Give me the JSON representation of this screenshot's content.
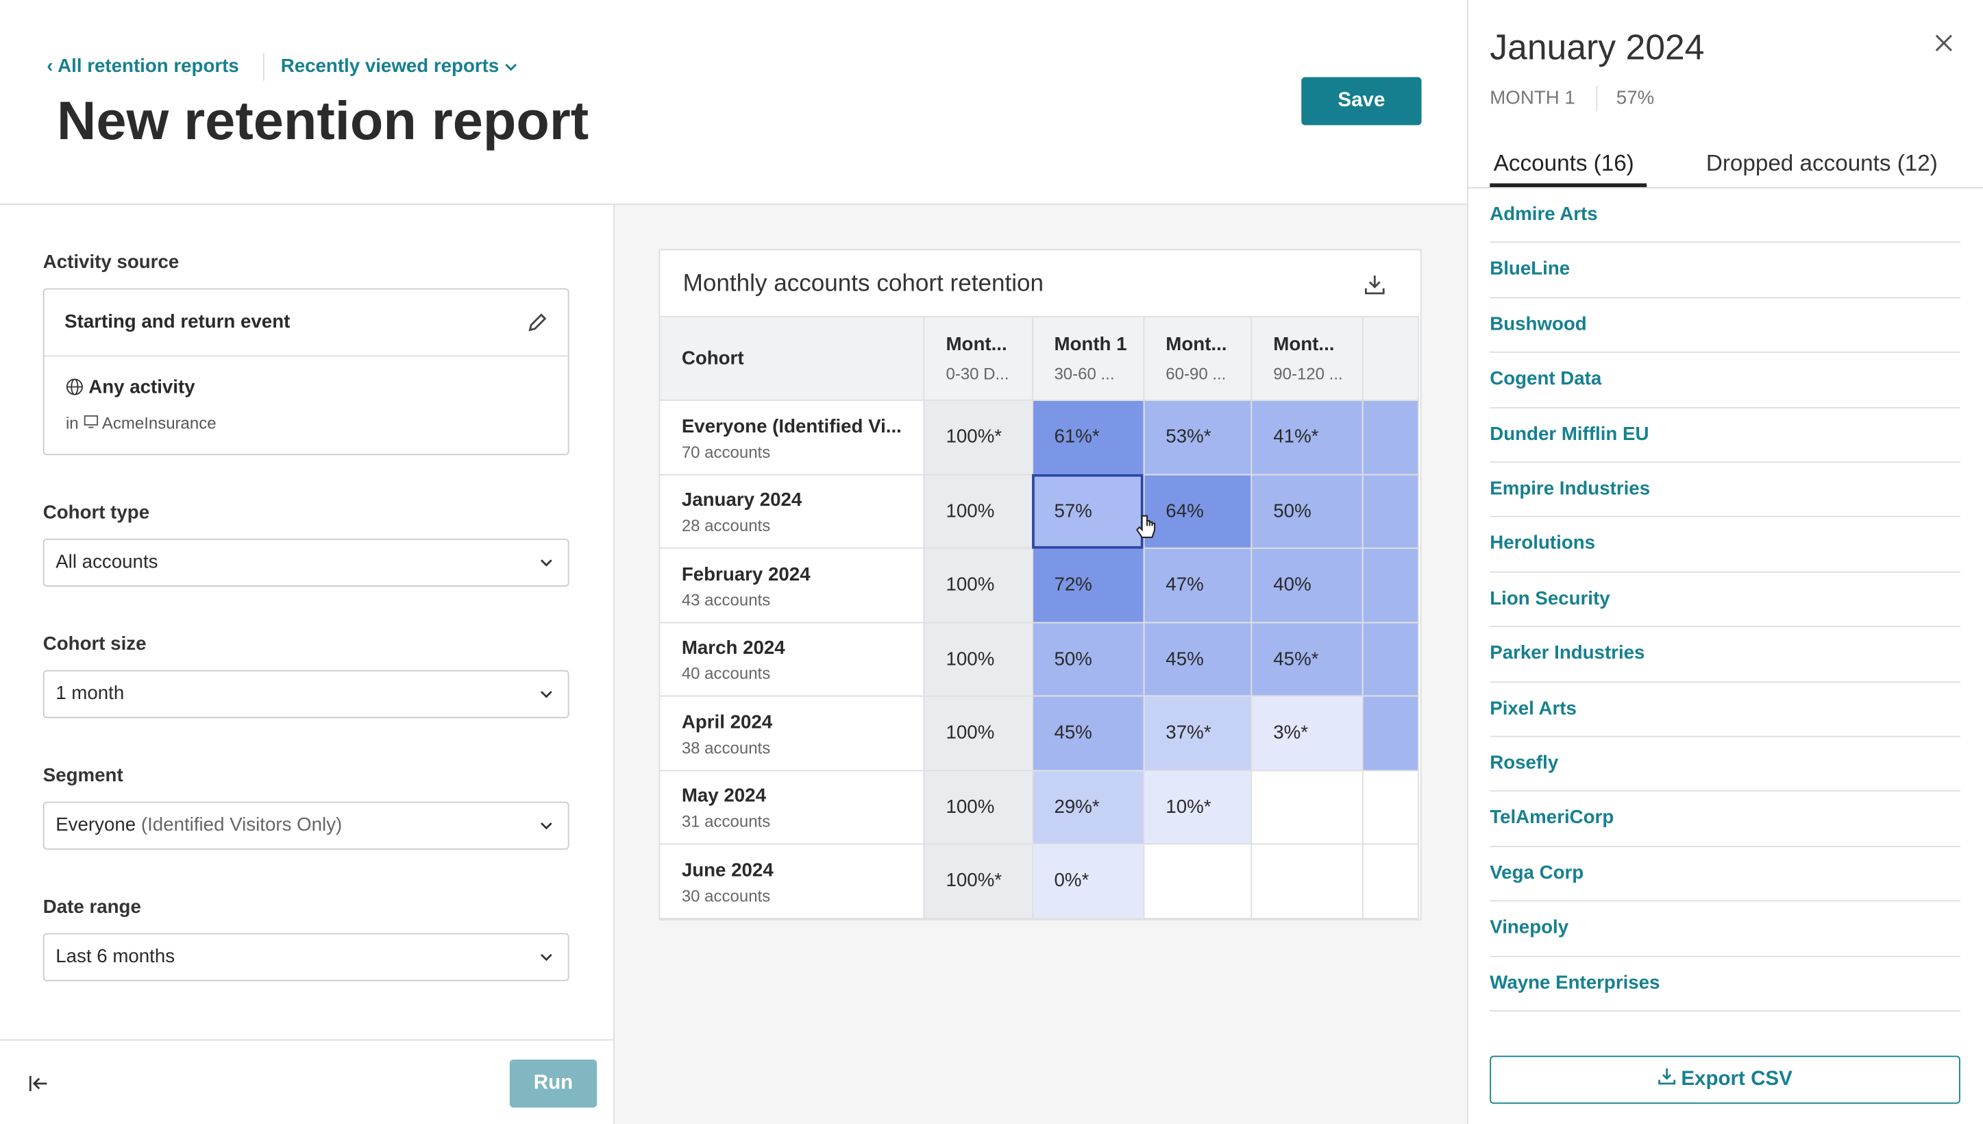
{
  "header": {
    "breadcrumb": "All retention reports",
    "recent": "Recently viewed reports",
    "title": "New retention report",
    "save": "Save"
  },
  "sidebar": {
    "activity_label": "Activity source",
    "event": "Starting and return event",
    "activity": "Any activity",
    "in": "in",
    "app": "AcmeInsurance",
    "fields": [
      {
        "label": "Cohort type",
        "value": "All accounts"
      },
      {
        "label": "Cohort size",
        "value": "1 month"
      },
      {
        "label": "Segment",
        "value": "Everyone",
        "note": "(Identified Visitors Only)"
      },
      {
        "label": "Date range",
        "value": "Last 6 months"
      }
    ],
    "run": "Run"
  },
  "table": {
    "title": "Monthly accounts cohort retention",
    "columns": [
      {
        "name": "Cohort"
      },
      {
        "name": "Mont...",
        "sub": "0-30 D..."
      },
      {
        "name": "Month 1",
        "sub": "30-60 ..."
      },
      {
        "name": "Mont...",
        "sub": "60-90 ..."
      },
      {
        "name": "Mont...",
        "sub": "90-120 ..."
      }
    ],
    "rows": [
      {
        "cohort": "Everyone (Identified Vi...",
        "size": "70 accounts",
        "cells": [
          "100%*",
          "61%*",
          "53%*",
          "41%*"
        ]
      },
      {
        "cohort": "January 2024",
        "size": "28 accounts",
        "cells": [
          "100%",
          "57%",
          "64%",
          "50%"
        ]
      },
      {
        "cohort": "February 2024",
        "size": "43 accounts",
        "cells": [
          "100%",
          "72%",
          "47%",
          "40%"
        ]
      },
      {
        "cohort": "March 2024",
        "size": "40 accounts",
        "cells": [
          "100%",
          "50%",
          "45%",
          "45%*"
        ]
      },
      {
        "cohort": "April 2024",
        "size": "38 accounts",
        "cells": [
          "100%",
          "45%",
          "37%*",
          "3%*"
        ]
      },
      {
        "cohort": "May 2024",
        "size": "31 accounts",
        "cells": [
          "100%",
          "29%*",
          "10%*",
          null
        ]
      },
      {
        "cohort": "June 2024",
        "size": "30 accounts",
        "cells": [
          "100%*",
          "0%*",
          null,
          null
        ]
      }
    ],
    "selected": [
      1,
      1
    ]
  },
  "panel": {
    "title": "January 2024",
    "month": "MONTH 1",
    "value": "57%",
    "tabs": [
      "Accounts (16)",
      "Dropped accounts (12)"
    ],
    "accounts": [
      "Admire Arts",
      "BlueLine",
      "Bushwood",
      "Cogent Data",
      "Dunder Mifflin EU",
      "Empire Industries",
      "Herolutions",
      "Lion Security",
      "Parker Industries",
      "Pixel Arts",
      "Rosefly",
      "TelAmeriCorp",
      "Vega Corp",
      "Vinepoly",
      "Wayne Enterprises"
    ],
    "export": "Export CSV"
  }
}
